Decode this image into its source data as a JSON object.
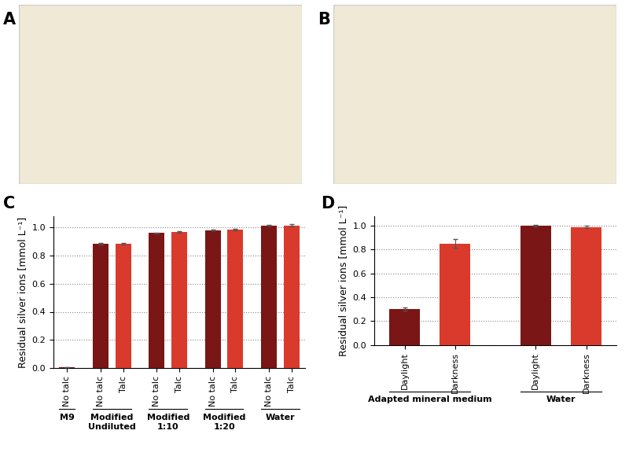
{
  "photo_panels": [
    "A",
    "B"
  ],
  "chart_data": [
    {
      "type": "bar",
      "panel": "C",
      "ylabel": "Residual silver ions [mmol L⁻¹]",
      "ylim": [
        0,
        1.08
      ],
      "yticks": [
        0.0,
        0.2,
        0.4,
        0.6,
        0.8,
        1.0
      ],
      "grid": true,
      "groups": [
        {
          "label": "M9",
          "categories": [
            "No talc"
          ],
          "values": [
            0.004
          ],
          "errors": [
            0.0
          ],
          "colors": [
            "#7a1616"
          ]
        },
        {
          "label": "Modified\nUndiluted",
          "categories": [
            "No talc",
            "Talc"
          ],
          "values": [
            0.885,
            0.885
          ],
          "errors": [
            0.004,
            0.004
          ],
          "colors": [
            "#7a1616",
            "#d93a2b"
          ]
        },
        {
          "label": "Modified\n1:10",
          "categories": [
            "No talc",
            "Talc"
          ],
          "values": [
            0.96,
            0.97
          ],
          "errors": [
            0.003,
            0.005
          ],
          "colors": [
            "#7a1616",
            "#d93a2b"
          ]
        },
        {
          "label": "Modified\n1:20",
          "categories": [
            "No talc",
            "Talc"
          ],
          "values": [
            0.98,
            0.984
          ],
          "errors": [
            0.003,
            0.004
          ],
          "colors": [
            "#7a1616",
            "#d93a2b"
          ]
        },
        {
          "label": "Water",
          "categories": [
            "No talc",
            "Talc"
          ],
          "values": [
            1.015,
            1.015
          ],
          "errors": [
            0.003,
            0.008
          ],
          "colors": [
            "#7a1616",
            "#d93a2b"
          ]
        }
      ]
    },
    {
      "type": "bar",
      "panel": "D",
      "ylabel": "Residual silver ions [mmol L⁻¹]",
      "ylim": [
        0,
        1.08
      ],
      "yticks": [
        0.0,
        0.2,
        0.4,
        0.6,
        0.8,
        1.0
      ],
      "grid": true,
      "groups": [
        {
          "label": "Adapted mineral medium",
          "categories": [
            "Daylight",
            "Darkness"
          ],
          "values": [
            0.3,
            0.852
          ],
          "errors": [
            0.012,
            0.035
          ],
          "colors": [
            "#7a1616",
            "#d93a2b"
          ]
        },
        {
          "label": "Water",
          "categories": [
            "Daylight",
            "Darkness"
          ],
          "values": [
            1.0,
            0.99
          ],
          "errors": [
            0.005,
            0.012
          ],
          "colors": [
            "#7a1616",
            "#d93a2b"
          ]
        }
      ]
    }
  ]
}
